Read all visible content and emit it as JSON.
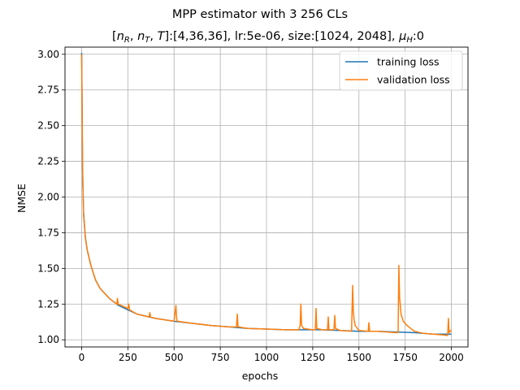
{
  "chart_data": {
    "type": "line",
    "title": "MPP estimator with 3 256 CLs",
    "subtitle": {
      "prefix": "[",
      "vars": [
        [
          "n",
          "R"
        ],
        [
          "n",
          "T"
        ],
        [
          "T",
          ""
        ]
      ],
      "suffix": "]:[4,36,36], lr:5e-06, size:[1024, 2048], ",
      "mu": [
        "μ",
        "H"
      ],
      "end": ":0"
    },
    "xlabel": "epochs",
    "ylabel": "NMSE",
    "xlim": [
      -90,
      2090
    ],
    "ylim": [
      0.95,
      3.05
    ],
    "xticks": [
      0,
      250,
      500,
      750,
      1000,
      1250,
      1500,
      1750,
      2000
    ],
    "xtick_labels": [
      "0",
      "250",
      "500",
      "750",
      "1000",
      "1250",
      "1500",
      "1750",
      "2000"
    ],
    "yticks": [
      1.0,
      1.25,
      1.5,
      1.75,
      2.0,
      2.25,
      2.5,
      2.75,
      3.0
    ],
    "ytick_labels": [
      "1.00",
      "1.25",
      "1.50",
      "1.75",
      "2.00",
      "2.25",
      "2.50",
      "2.75",
      "3.00"
    ],
    "grid": true,
    "legend_position": "top-right",
    "series": [
      {
        "name": "training loss",
        "color": "#1f77b4",
        "x": [
          0,
          2,
          5,
          10,
          20,
          30,
          50,
          75,
          100,
          150,
          200,
          250,
          300,
          400,
          500,
          600,
          700,
          800,
          900,
          1000,
          1100,
          1200,
          1300,
          1400,
          1500,
          1600,
          1700,
          1800,
          1900,
          2000
        ],
        "y": [
          3.01,
          2.75,
          2.2,
          1.9,
          1.72,
          1.63,
          1.52,
          1.42,
          1.36,
          1.29,
          1.24,
          1.21,
          1.18,
          1.15,
          1.13,
          1.115,
          1.1,
          1.09,
          1.08,
          1.075,
          1.07,
          1.07,
          1.07,
          1.065,
          1.06,
          1.06,
          1.055,
          1.05,
          1.04,
          1.04
        ]
      },
      {
        "name": "validation loss",
        "color": "#ff7f0e",
        "x": [
          0,
          2,
          5,
          10,
          20,
          30,
          50,
          75,
          100,
          150,
          190,
          194,
          198,
          250,
          255,
          259,
          300,
          365,
          369,
          373,
          400,
          500,
          510,
          514,
          518,
          600,
          700,
          800,
          838,
          842,
          846,
          900,
          1000,
          1100,
          1175,
          1182,
          1186,
          1190,
          1200,
          1250,
          1264,
          1268,
          1272,
          1300,
          1330,
          1334,
          1338,
          1365,
          1369,
          1373,
          1400,
          1460,
          1466,
          1470,
          1474,
          1480,
          1500,
          1550,
          1554,
          1558,
          1600,
          1650,
          1700,
          1712,
          1716,
          1720,
          1728,
          1740,
          1760,
          1780,
          1800,
          1850,
          1900,
          1950,
          1980,
          1984,
          1988,
          2000
        ],
        "y": [
          3.0,
          2.7,
          2.2,
          1.88,
          1.72,
          1.63,
          1.52,
          1.42,
          1.36,
          1.29,
          1.25,
          1.29,
          1.25,
          1.22,
          1.25,
          1.21,
          1.18,
          1.16,
          1.19,
          1.16,
          1.15,
          1.13,
          1.24,
          1.15,
          1.13,
          1.115,
          1.1,
          1.09,
          1.09,
          1.18,
          1.09,
          1.08,
          1.075,
          1.07,
          1.07,
          1.1,
          1.25,
          1.1,
          1.08,
          1.07,
          1.07,
          1.22,
          1.08,
          1.07,
          1.07,
          1.16,
          1.07,
          1.07,
          1.17,
          1.08,
          1.065,
          1.06,
          1.38,
          1.2,
          1.14,
          1.1,
          1.065,
          1.06,
          1.12,
          1.06,
          1.06,
          1.055,
          1.05,
          1.05,
          1.52,
          1.3,
          1.18,
          1.13,
          1.1,
          1.08,
          1.06,
          1.045,
          1.04,
          1.035,
          1.03,
          1.15,
          1.05,
          1.07
        ]
      }
    ]
  }
}
